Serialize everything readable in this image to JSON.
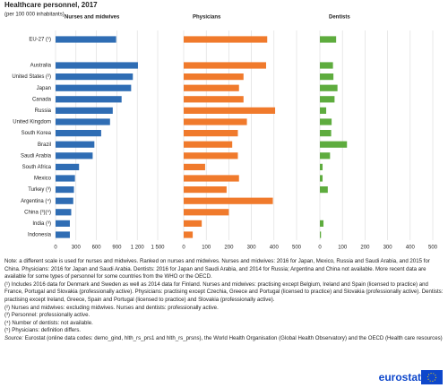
{
  "title": "Healthcare personnel, 2017",
  "subtitle": "(per 100 000 inhabitants)",
  "notes": [
    "Note: a different scale is used for nurses and midwives. Ranked on nurses and midwives. Nurses and midwives: 2016 for Japan, Mexico, Russia and Saudi Arabia, and 2015 for China. Physicians: 2016 for Japan and Saudi Arabia. Dentists: 2016 for Japan and Saudi Arabia, and 2014 for Russia; Argentina and China not available. More recent data are available for some types of personnel for some countries from the WHO or the OECD.",
    "(¹) Includes 2016 data for Denmark and Sweden as well as 2014 data for Finland. Nurses and midwives: practising except Belgium, Ireland and Spain (licensed to practice) and France, Portugal and Slovakia (professionally active). Physicians: practising except Czechia, Greece and Portugal (licensed to practice) and Slovakia (professionally active). Dentists: practising except Ireland, Greece, Spain and Portugal (licensed to practice) and Slovakia (professionally active).",
    "(²) Nurses and midwives: excluding midwives. Nurses and dentists: professionally active.",
    "(³) Personnel: professionally active.",
    "(⁴) Number of dentists: not available.",
    "(⁵) Physicians: definition differs."
  ],
  "source_label": "Source:",
  "source": "Eurostat (online data codes: demo_gind, hlth_rs_prs1 and hlth_rs_prsns), the World Health Organisation (Global Health Observatory) and the OECD (Health care resources)",
  "logo": "eurostat",
  "chart_data": [
    {
      "type": "bar",
      "orientation": "horizontal",
      "title": "Nurses and midwives",
      "categories": [
        "EU-27 (¹)",
        "Australia",
        "United States (²)",
        "Japan",
        "Canada",
        "Russia",
        "United Kingdom",
        "South Korea",
        "Brazil",
        "Saudi Arabia",
        "South Africa",
        "Mexico",
        "Turkey (³)",
        "Argentina (⁴)",
        "China (³)(⁵)",
        "India (³)",
        "Indonesia"
      ],
      "values": [
        890,
        1210,
        1135,
        1110,
        970,
        840,
        800,
        670,
        570,
        545,
        345,
        285,
        270,
        260,
        230,
        210,
        210
      ],
      "color": "#2f6db4",
      "xlim": [
        0,
        1500
      ],
      "xticks": [
        0,
        300,
        600,
        900,
        {
          "value": 1200,
          "label": "1 200"
        },
        {
          "value": 1500,
          "label": "1 500"
        }
      ],
      "grid": true
    },
    {
      "type": "bar",
      "orientation": "horizontal",
      "title": "Physicians",
      "values": [
        370,
        365,
        265,
        245,
        265,
        405,
        280,
        240,
        215,
        240,
        95,
        245,
        190,
        395,
        200,
        80,
        40
      ],
      "color": "#f07a2c",
      "xlim": [
        0,
        500
      ],
      "xticks": [
        0,
        100,
        200,
        300,
        400,
        500
      ],
      "grid": true
    },
    {
      "type": "bar",
      "orientation": "horizontal",
      "title": "Dentists",
      "values": [
        72,
        58,
        60,
        78,
        65,
        28,
        52,
        50,
        120,
        45,
        12,
        12,
        35,
        null,
        null,
        16,
        5
      ],
      "color": "#5eac3e",
      "xlim": [
        0,
        500
      ],
      "xticks": [
        0,
        100,
        200,
        300,
        400,
        500
      ],
      "grid": true
    }
  ]
}
